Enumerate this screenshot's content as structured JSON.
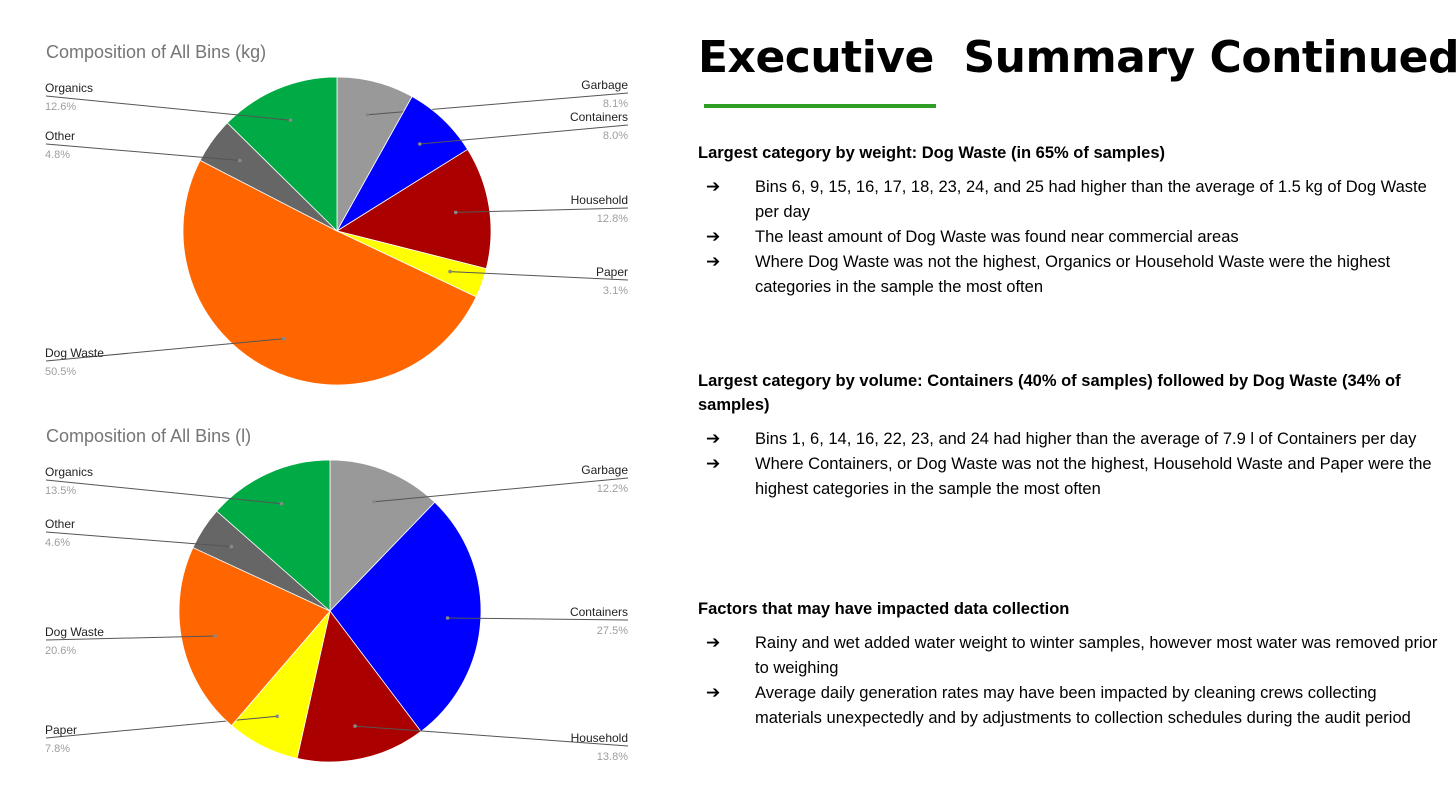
{
  "chart_data": [
    {
      "type": "pie",
      "title": "Composition of All Bins (kg)",
      "slices": [
        {
          "label": "Garbage",
          "value": 8.1,
          "pct": "8.1%",
          "color": "#999999",
          "side": "right"
        },
        {
          "label": "Containers",
          "value": 8.0,
          "pct": "8.0%",
          "color": "#0000ff",
          "side": "right"
        },
        {
          "label": "Household",
          "value": 12.8,
          "pct": "12.8%",
          "color": "#aa0000",
          "side": "right"
        },
        {
          "label": "Paper",
          "value": 3.1,
          "pct": "3.1%",
          "color": "#ffff00",
          "side": "right"
        },
        {
          "label": "Dog Waste",
          "value": 50.5,
          "pct": "50.5%",
          "color": "#ff6600",
          "side": "left"
        },
        {
          "label": "Other",
          "value": 4.8,
          "pct": "4.8%",
          "color": "#666666",
          "side": "left"
        },
        {
          "label": "Organics",
          "value": 12.6,
          "pct": "12.6%",
          "color": "#00aa44",
          "side": "left"
        }
      ]
    },
    {
      "type": "pie",
      "title": "Composition of All Bins (l)",
      "slices": [
        {
          "label": "Garbage",
          "value": 12.2,
          "pct": "12.2%",
          "color": "#999999",
          "side": "right"
        },
        {
          "label": "Containers",
          "value": 27.5,
          "pct": "27.5%",
          "color": "#0000ff",
          "side": "right"
        },
        {
          "label": "Household",
          "value": 13.8,
          "pct": "13.8%",
          "color": "#aa0000",
          "side": "right"
        },
        {
          "label": "Paper",
          "value": 7.8,
          "pct": "7.8%",
          "color": "#ffff00",
          "side": "left"
        },
        {
          "label": "Dog Waste",
          "value": 20.6,
          "pct": "20.6%",
          "color": "#ff6600",
          "side": "left"
        },
        {
          "label": "Other",
          "value": 4.6,
          "pct": "4.6%",
          "color": "#666666",
          "side": "left"
        },
        {
          "label": "Organics",
          "value": 13.5,
          "pct": "13.5%",
          "color": "#00aa44",
          "side": "left"
        }
      ]
    }
  ],
  "summary": {
    "title": "Executive  Summary Continued",
    "accent_color": "#2e9e25",
    "sections": [
      {
        "heading": "Largest category by weight: Dog Waste (in 65% of samples)",
        "bullets": [
          "Bins 6, 9, 15, 16, 17, 18, 23, 24, and 25 had higher than the average of 1.5 kg of Dog Waste per day",
          "The least amount of Dog Waste was found near commercial areas",
          "Where Dog Waste was not the highest, Organics or Household Waste were the highest categories in the sample the most often"
        ]
      },
      {
        "heading": "Largest category by volume: Containers (40% of samples) followed by Dog Waste (34% of samples)",
        "bullets": [
          "Bins 1, 6, 14, 16, 22, 23, and 24 had higher than the average of 7.9 l of Containers per day",
          "Where Containers, or Dog Waste was not the highest, Household Waste and Paper were the highest categories in the sample the most often"
        ]
      },
      {
        "heading": "Factors that may have impacted data collection",
        "bullets": [
          "Rainy and wet added water weight to winter samples, however most water was removed prior to weighing",
          "Average daily generation rates may have been impacted by cleaning crews collecting materials unexpectedly and by adjustments to collection schedules during the audit period"
        ]
      }
    ],
    "bullet_icon": "right-arrow-icon",
    "bullet_glyph": "➔"
  }
}
